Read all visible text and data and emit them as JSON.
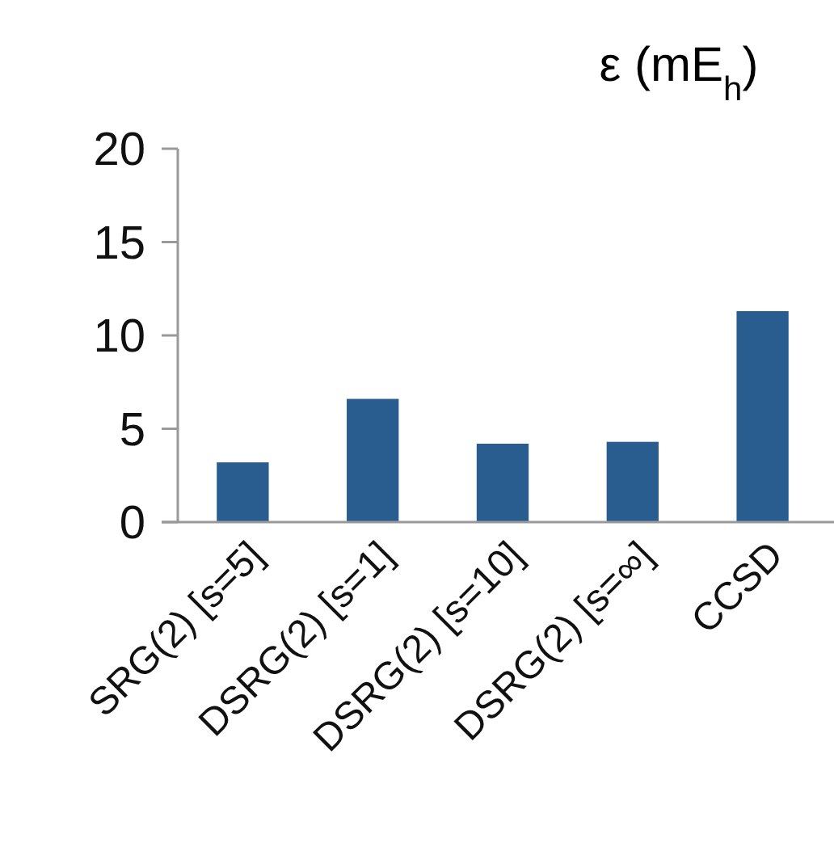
{
  "chart_data": {
    "type": "bar",
    "title": "ε (mE$_{h}$)",
    "categories": [
      "SRG(2) [s=5]",
      "DSRG(2) [s=1]",
      "DSRG(2) [s=10]",
      "DSRG(2) [s=∞]",
      "CCSD"
    ],
    "values": [
      3.2,
      6.6,
      4.2,
      4.3,
      11.3
    ],
    "color": "#2a5d8f",
    "ylim": [
      0,
      20
    ],
    "yticks": [
      0,
      5,
      10,
      15,
      20
    ],
    "grid": false
  }
}
